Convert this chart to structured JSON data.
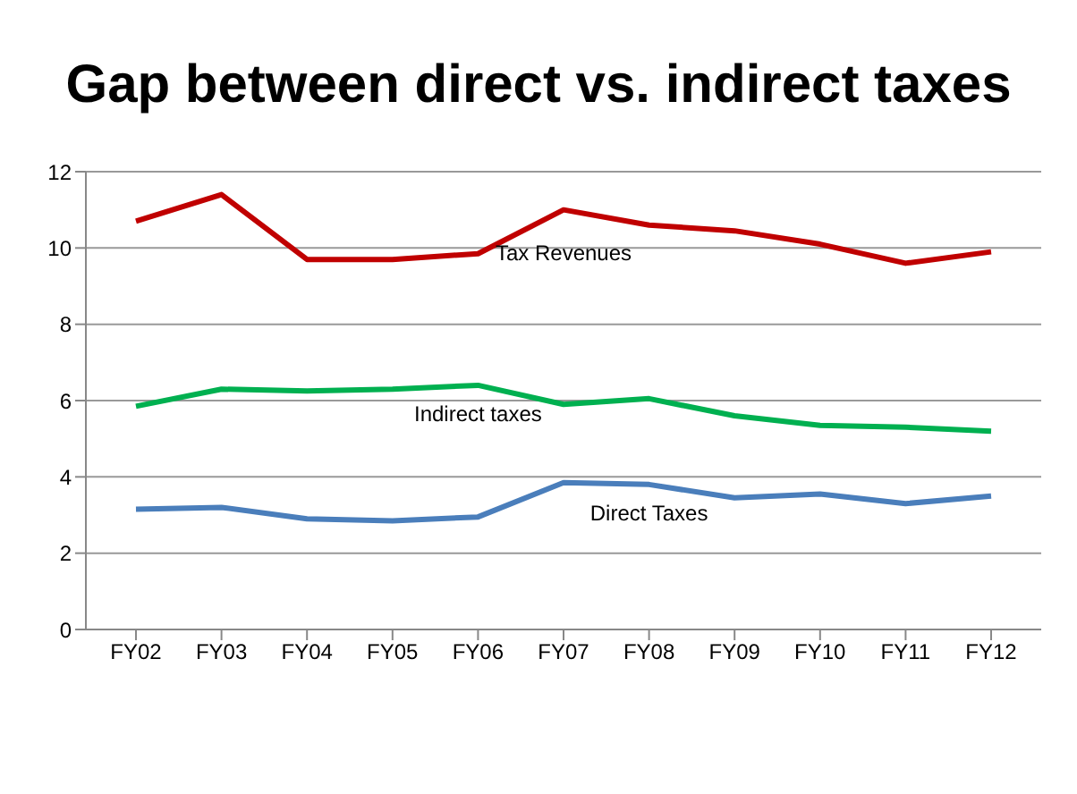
{
  "chart_data": {
    "type": "line",
    "title": "Gap between direct vs. indirect taxes",
    "categories": [
      "FY02",
      "FY03",
      "FY04",
      "FY05",
      "FY06",
      "FY07",
      "FY08",
      "FY09",
      "FY10",
      "FY11",
      "FY12"
    ],
    "series": [
      {
        "name": "Tax Revenues",
        "color": "#c00000",
        "values": [
          10.7,
          11.4,
          9.7,
          9.7,
          9.85,
          11.0,
          10.6,
          10.45,
          10.1,
          9.6,
          9.9
        ]
      },
      {
        "name": "Indirect taxes",
        "color": "#00b050",
        "values": [
          5.85,
          6.3,
          6.25,
          6.3,
          6.4,
          5.9,
          6.05,
          5.6,
          5.35,
          5.3,
          5.2
        ]
      },
      {
        "name": "Direct Taxes",
        "color": "#4a7ebb",
        "values": [
          3.15,
          3.2,
          2.9,
          2.85,
          2.95,
          3.85,
          3.8,
          3.45,
          3.55,
          3.3,
          3.5
        ]
      }
    ],
    "ylim": [
      0,
      12
    ],
    "yticks": [
      0,
      2,
      4,
      6,
      8,
      10,
      12
    ],
    "grid": "y",
    "legend": false,
    "marker": "none",
    "line_style": "solid"
  }
}
